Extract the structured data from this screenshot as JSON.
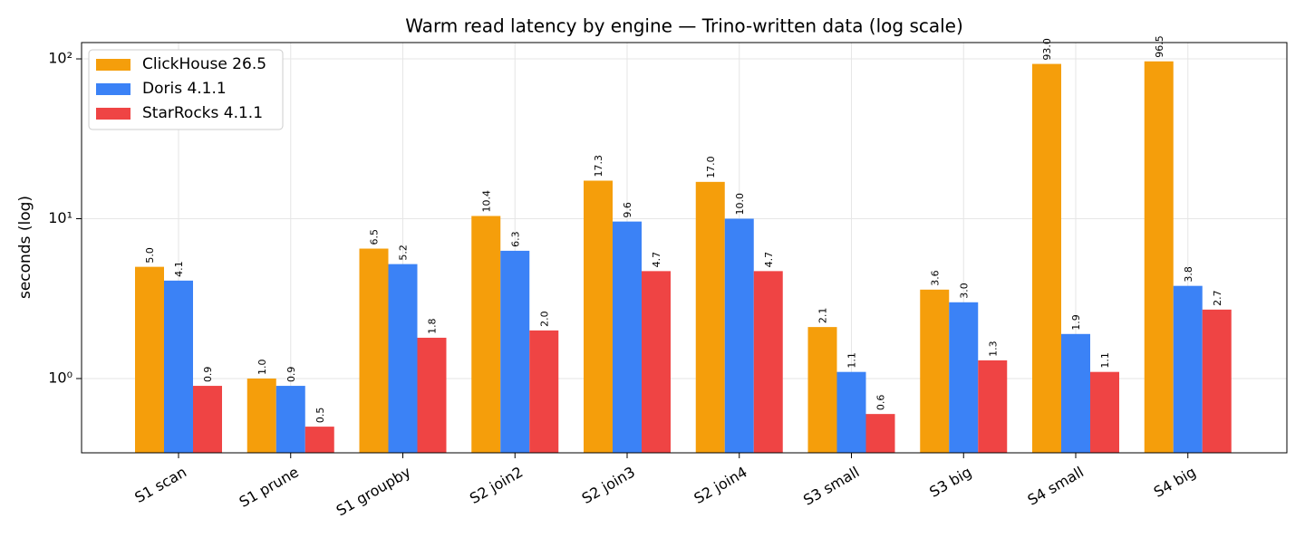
{
  "chart_data": {
    "type": "bar",
    "title": "Warm read latency by engine — Trino-written data (log scale)",
    "y_label": "seconds (log)",
    "log_scale": true,
    "grid": true,
    "legend": "upper left",
    "categories": [
      "S1 scan",
      "S1 prune",
      "S1 groupby",
      "S2 join2",
      "S2 join3",
      "S2 join4",
      "S3 small",
      "S3 big",
      "S4 small",
      "S4 big"
    ],
    "series": [
      {
        "name": "ClickHouse 26.5",
        "color": "#f59e0b",
        "values": [
          5.0,
          1.0,
          6.5,
          10.4,
          17.3,
          17.0,
          2.1,
          3.6,
          93.0,
          96.5
        ],
        "value_labels": [
          "5.0",
          "1.0",
          "6.5",
          "10.4",
          "17.3",
          "17.0",
          "2.1",
          "3.6",
          "93.0",
          "96.5"
        ]
      },
      {
        "name": "Doris 4.1.1",
        "color": "#3b82f6",
        "values": [
          4.1,
          0.9,
          5.2,
          6.3,
          9.6,
          10.0,
          1.1,
          3.0,
          1.9,
          3.8
        ],
        "value_labels": [
          "4.1",
          "0.9",
          "5.2",
          "6.3",
          "9.6",
          "10.0",
          "1.1",
          "3.0",
          "1.9",
          "3.8"
        ]
      },
      {
        "name": "StarRocks 4.1.1",
        "color": "#ef4444",
        "values": [
          0.9,
          0.5,
          1.8,
          2.0,
          4.7,
          4.7,
          0.6,
          1.3,
          1.1,
          2.7
        ],
        "value_labels": [
          "0.9",
          "0.5",
          "1.8",
          "2.0",
          "4.7",
          "4.7",
          "0.6",
          "1.3",
          "1.1",
          "2.7"
        ]
      }
    ],
    "ylim": [
      0.343,
      126.5
    ],
    "yticks": [
      {
        "value": 1,
        "label": "10⁰"
      },
      {
        "value": 10,
        "label": "10¹"
      },
      {
        "value": 100,
        "label": "10²"
      }
    ]
  }
}
